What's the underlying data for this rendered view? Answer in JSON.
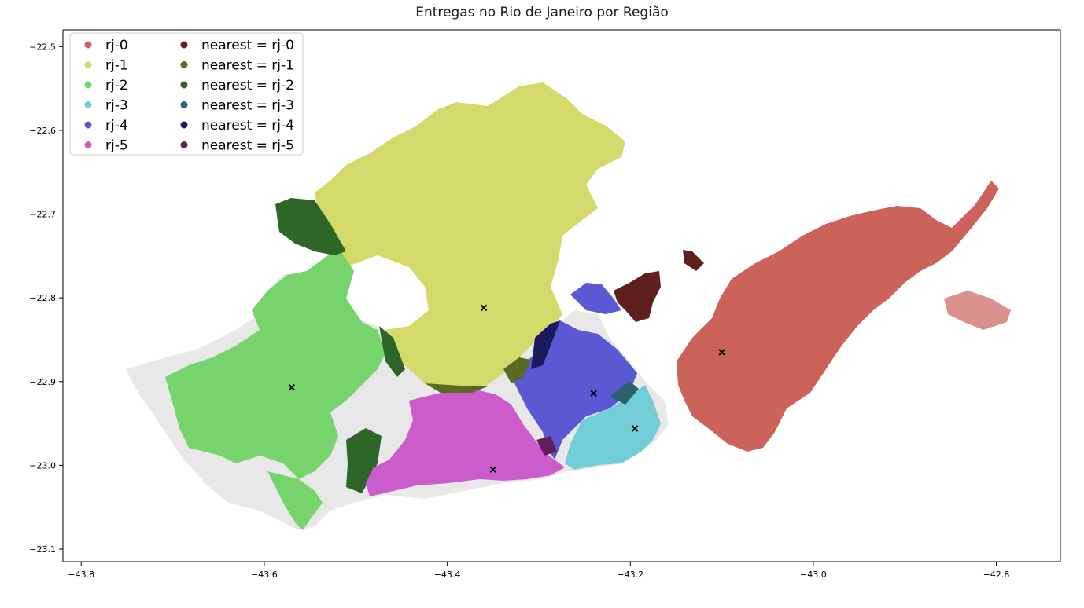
{
  "title": "Entregas no Rio de Janeiro por Região",
  "axes": {
    "x_ticks": [
      {
        "value": -43.8,
        "label": "−43.8"
      },
      {
        "value": -43.6,
        "label": "−43.6"
      },
      {
        "value": -43.4,
        "label": "−43.4"
      },
      {
        "value": -43.2,
        "label": "−43.2"
      },
      {
        "value": -43.0,
        "label": "−43.0"
      },
      {
        "value": -42.8,
        "label": "−42.8"
      }
    ],
    "y_ticks": [
      {
        "value": -22.5,
        "label": "−22.5"
      },
      {
        "value": -22.6,
        "label": "−22.6"
      },
      {
        "value": -22.7,
        "label": "−22.7"
      },
      {
        "value": -22.8,
        "label": "−22.8"
      },
      {
        "value": -22.9,
        "label": "−22.9"
      },
      {
        "value": -23.0,
        "label": "−23.0"
      },
      {
        "value": -23.1,
        "label": "−23.1"
      }
    ],
    "xlim": [
      -43.82,
      -42.73
    ],
    "ylim": [
      -23.115,
      -22.48
    ]
  },
  "legend": {
    "placement": "top-left",
    "regions": [
      {
        "label": "rj-0",
        "color": "#cc635a"
      },
      {
        "label": "rj-1",
        "color": "#d4d96c"
      },
      {
        "label": "rj-2",
        "color": "#77d46c"
      },
      {
        "label": "rj-3",
        "color": "#72cdd9"
      },
      {
        "label": "rj-4",
        "color": "#5b58d4"
      },
      {
        "label": "rj-5",
        "color": "#cc5ccc"
      }
    ],
    "nearest": [
      {
        "label": "nearest = rj-0",
        "color": "#5e1f1f"
      },
      {
        "label": "nearest = rj-1",
        "color": "#5a6a20"
      },
      {
        "label": "nearest = rj-2",
        "color": "#2e6628"
      },
      {
        "label": "nearest = rj-3",
        "color": "#2c6270"
      },
      {
        "label": "nearest = rj-4",
        "color": "#1a1a5e"
      },
      {
        "label": "nearest = rj-5",
        "color": "#5e1f5a"
      }
    ]
  },
  "centroids": [
    {
      "region": "rj-0",
      "lon": -43.1,
      "lat": -22.865
    },
    {
      "region": "rj-1",
      "lon": -43.36,
      "lat": -22.812
    },
    {
      "region": "rj-2",
      "lon": -43.57,
      "lat": -22.907
    },
    {
      "region": "rj-3",
      "lon": -43.195,
      "lat": -22.956
    },
    {
      "region": "rj-4",
      "lon": -43.24,
      "lat": -22.914
    },
    {
      "region": "rj-5",
      "lon": -43.35,
      "lat": -23.005
    }
  ],
  "background_color": "#e8e8e8"
}
